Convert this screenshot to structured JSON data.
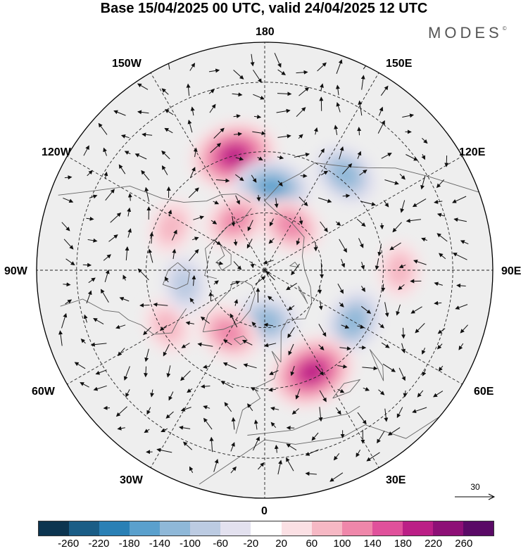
{
  "header": {
    "title": "Base 15/04/2025 00 UTC, valid 24/04/2025 12 UTC",
    "brand": "MODES",
    "brand_mark": "©"
  },
  "map": {
    "projection": "north-polar-stereographic",
    "longitude_labels": {
      "top": "180",
      "top_left": "150W",
      "top_right": "150E",
      "upper_left": "120W",
      "upper_right": "120E",
      "left": "90W",
      "right": "90E",
      "lower_left": "60W",
      "lower_right": "60E",
      "bottom_left": "30W",
      "bottom_right": "30E",
      "bottom": "0"
    },
    "anomaly_features": [
      {
        "name": "positive-center-north-pacific",
        "lon": -165,
        "lat": 50,
        "value": 180
      },
      {
        "name": "negative-center-bering",
        "lon": 175,
        "lat": 62,
        "value": -140
      },
      {
        "name": "positive-center-alaska-arctic",
        "lon": -150,
        "lat": 70,
        "value": 100
      },
      {
        "name": "positive-center-east-siberian",
        "lon": 150,
        "lat": 72,
        "value": 100
      },
      {
        "name": "negative-center-okhotsk",
        "lon": 140,
        "lat": 48,
        "value": -100
      },
      {
        "name": "positive-center-central-asia",
        "lon": 90,
        "lat": 45,
        "value": 60
      },
      {
        "name": "negative-center-west-siberia",
        "lon": 60,
        "lat": 55,
        "value": -100
      },
      {
        "name": "positive-center-eastern-europe",
        "lon": 25,
        "lat": 52,
        "value": 180
      },
      {
        "name": "negative-center-norwegian-sea",
        "lon": 0,
        "lat": 72,
        "value": -100
      },
      {
        "name": "positive-center-greenland-east",
        "lon": -30,
        "lat": 65,
        "value": 100
      },
      {
        "name": "positive-center-labrador",
        "lon": -60,
        "lat": 52,
        "value": 60
      },
      {
        "name": "negative-center-hudson",
        "lon": -80,
        "lat": 62,
        "value": -60
      },
      {
        "name": "positive-center-western-canada",
        "lon": -115,
        "lat": 55,
        "value": 60
      }
    ]
  },
  "vector_reference": {
    "label": "30"
  },
  "colorbar": {
    "colors": [
      "#0c3550",
      "#1a5d86",
      "#2a80b5",
      "#5aa0cd",
      "#8fb8d8",
      "#bccbe2",
      "#e3e1ef",
      "#ffffff",
      "#fbe0e4",
      "#f6b8c4",
      "#ef87aa",
      "#e0519b",
      "#bb1f86",
      "#8d1076",
      "#5a0a66"
    ],
    "ticks": [
      "-260",
      "-220",
      "-180",
      "-140",
      "-100",
      "-60",
      "-20",
      "20",
      "60",
      "100",
      "140",
      "180",
      "220",
      "260"
    ]
  }
}
